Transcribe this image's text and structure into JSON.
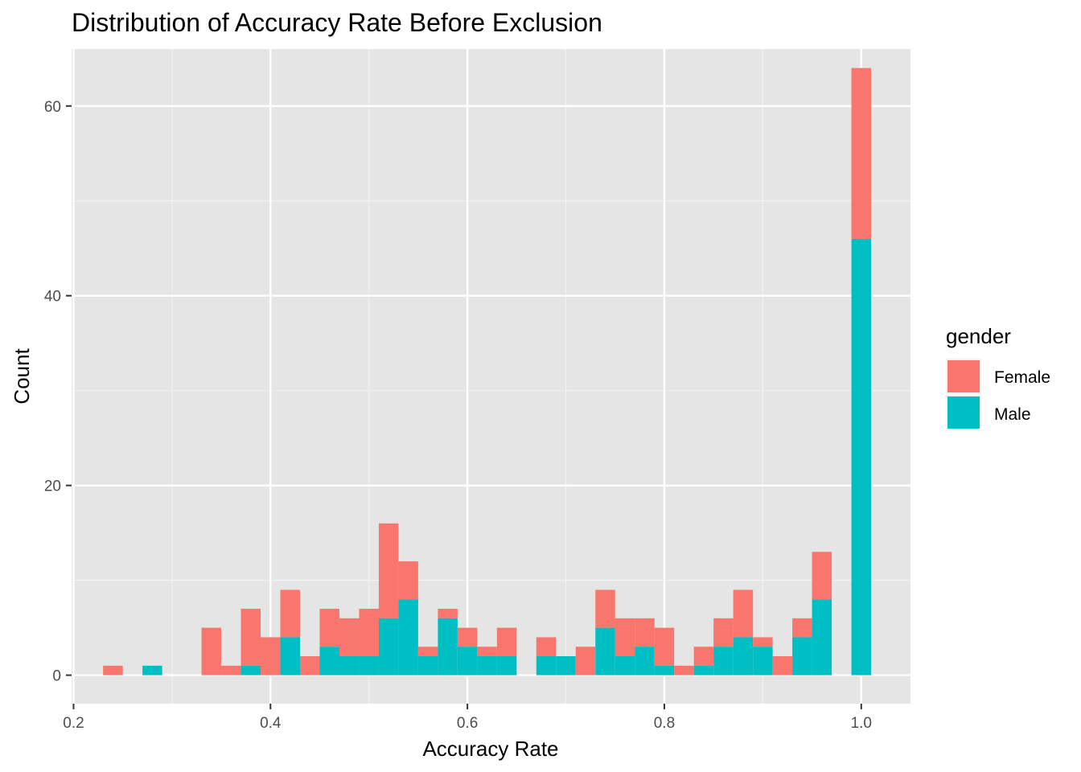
{
  "chart_data": {
    "type": "bar",
    "subtype": "stacked-histogram",
    "title": "Distribution of Accuracy Rate Before Exclusion",
    "xlabel": "Accuracy Rate",
    "ylabel": "Count",
    "xlim": [
      0.198,
      1.05
    ],
    "ylim": [
      -3,
      66
    ],
    "x_ticks": [
      {
        "value": 0.2,
        "label": "0.2"
      },
      {
        "value": 0.4,
        "label": "0.4"
      },
      {
        "value": 0.6,
        "label": "0.6"
      },
      {
        "value": 0.8,
        "label": "0.8"
      },
      {
        "value": 1.0,
        "label": "1.0"
      }
    ],
    "y_ticks": [
      {
        "value": 0,
        "label": "0"
      },
      {
        "value": 20,
        "label": "20"
      },
      {
        "value": 40,
        "label": "40"
      },
      {
        "value": 60,
        "label": "60"
      }
    ],
    "grid": true,
    "background": "#e5e5e5",
    "legend": {
      "title": "gender",
      "position": "right"
    },
    "series": [
      {
        "name": "Female",
        "color": "#f8766d"
      },
      {
        "name": "Male",
        "color": "#00bfc4"
      }
    ],
    "bin_width": 0.02,
    "bins": [
      {
        "x": 0.24,
        "male": 0,
        "total": 1
      },
      {
        "x": 0.28,
        "male": 1,
        "total": 1
      },
      {
        "x": 0.34,
        "male": 0,
        "total": 5
      },
      {
        "x": 0.36,
        "male": 0,
        "total": 1
      },
      {
        "x": 0.38,
        "male": 1,
        "total": 7
      },
      {
        "x": 0.4,
        "male": 0,
        "total": 4
      },
      {
        "x": 0.42,
        "male": 4,
        "total": 9
      },
      {
        "x": 0.44,
        "male": 0,
        "total": 2
      },
      {
        "x": 0.46,
        "male": 3,
        "total": 7
      },
      {
        "x": 0.48,
        "male": 2,
        "total": 6
      },
      {
        "x": 0.5,
        "male": 2,
        "total": 7
      },
      {
        "x": 0.52,
        "male": 6,
        "total": 16
      },
      {
        "x": 0.54,
        "male": 8,
        "total": 12
      },
      {
        "x": 0.56,
        "male": 2,
        "total": 3
      },
      {
        "x": 0.58,
        "male": 6,
        "total": 7
      },
      {
        "x": 0.6,
        "male": 3,
        "total": 5
      },
      {
        "x": 0.62,
        "male": 2,
        "total": 3
      },
      {
        "x": 0.64,
        "male": 2,
        "total": 5
      },
      {
        "x": 0.68,
        "male": 2,
        "total": 4
      },
      {
        "x": 0.7,
        "male": 2,
        "total": 2
      },
      {
        "x": 0.72,
        "male": 0,
        "total": 3
      },
      {
        "x": 0.74,
        "male": 5,
        "total": 9
      },
      {
        "x": 0.76,
        "male": 2,
        "total": 6
      },
      {
        "x": 0.78,
        "male": 3,
        "total": 6
      },
      {
        "x": 0.8,
        "male": 1,
        "total": 5
      },
      {
        "x": 0.82,
        "male": 0,
        "total": 1
      },
      {
        "x": 0.84,
        "male": 1,
        "total": 3
      },
      {
        "x": 0.86,
        "male": 3,
        "total": 6
      },
      {
        "x": 0.88,
        "male": 4,
        "total": 9
      },
      {
        "x": 0.9,
        "male": 3,
        "total": 4
      },
      {
        "x": 0.92,
        "male": 0,
        "total": 2
      },
      {
        "x": 0.94,
        "male": 4,
        "total": 6
      },
      {
        "x": 0.96,
        "male": 8,
        "total": 13
      },
      {
        "x": 1.0,
        "male": 46,
        "total": 64
      }
    ]
  }
}
